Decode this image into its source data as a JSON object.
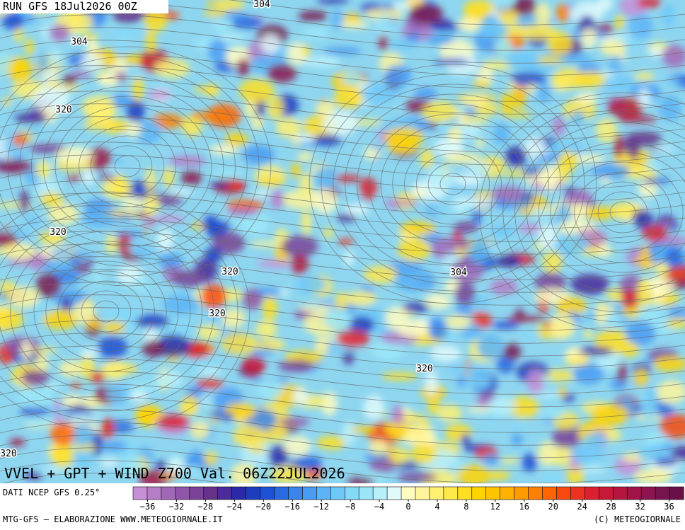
{
  "header": {
    "run": "RUN GFS 18Jul2026 00Z"
  },
  "map": {
    "title": "VVEL + GPT + WIND Z700 Val. 06Z22JUL2026",
    "contour_labels": [
      "304",
      "304",
      "320",
      "320",
      "320",
      "320",
      "320",
      "304",
      "320"
    ]
  },
  "colorbar": {
    "source": "DATI NCEP GFS 0.25°",
    "range": [
      -38,
      38
    ],
    "ticks": [
      {
        "value": -36,
        "label": "−36"
      },
      {
        "value": -32,
        "label": "−32"
      },
      {
        "value": -28,
        "label": "−28"
      },
      {
        "value": -24,
        "label": "−24"
      },
      {
        "value": -20,
        "label": "−20"
      },
      {
        "value": -16,
        "label": "−16"
      },
      {
        "value": -12,
        "label": "−12"
      },
      {
        "value": -8,
        "label": "−8"
      },
      {
        "value": -4,
        "label": "−4"
      },
      0,
      4,
      8,
      12,
      16,
      20,
      24,
      28,
      32,
      36
    ],
    "colors": [
      "#c78fd6",
      "#b57cc8",
      "#a268b8",
      "#8e55a8",
      "#7a4298",
      "#663188",
      "#4b2a9a",
      "#2a2aa8",
      "#1e3cc0",
      "#1e50d4",
      "#2a6ae0",
      "#3a84ec",
      "#4a9cf2",
      "#5cb4f6",
      "#6ec8f8",
      "#84d8f8",
      "#9ae6f8",
      "#b8f0fa",
      "#e0fafc",
      "#fffcc0",
      "#fff59a",
      "#fff070",
      "#ffe84a",
      "#ffdf20",
      "#ffd400",
      "#ffc400",
      "#ffb000",
      "#ff9a00",
      "#ff8000",
      "#ff6400",
      "#f84a10",
      "#ec3220",
      "#dc2030",
      "#c81838",
      "#b41640",
      "#a01448",
      "#8c1450",
      "#781450",
      "#6a1048"
    ]
  },
  "footer": {
    "credit": "MTG-GFS — ELABORAZIONE WWW.METEOGIORNALE.IT",
    "copyright": "(C) METEOGIORNALE"
  }
}
